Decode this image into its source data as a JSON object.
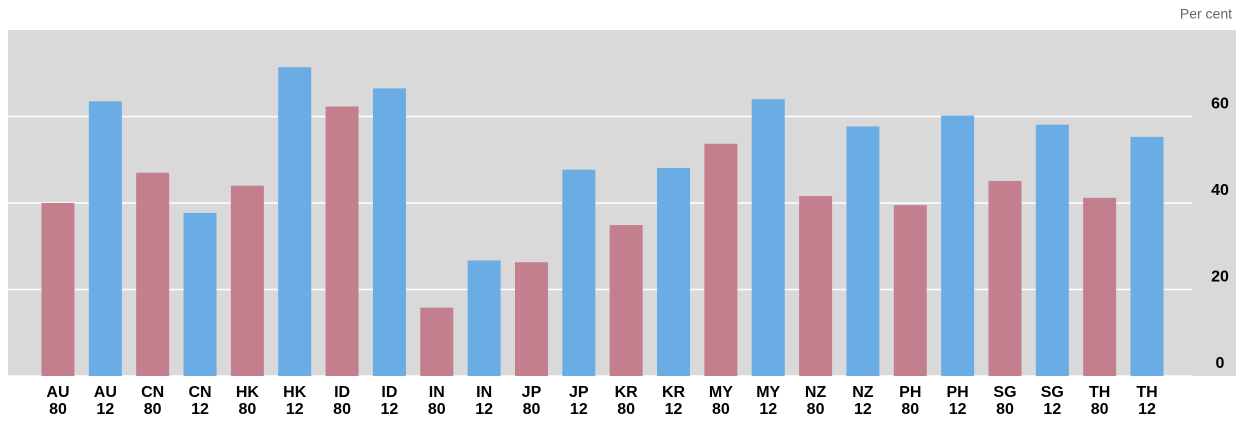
{
  "chart_data": {
    "type": "bar",
    "y_axis_label": "Per cent",
    "categories": [
      [
        "AU",
        "80"
      ],
      [
        "AU",
        "12"
      ],
      [
        "CN",
        "80"
      ],
      [
        "CN",
        "12"
      ],
      [
        "HK",
        "80"
      ],
      [
        "HK",
        "12"
      ],
      [
        "ID",
        "80"
      ],
      [
        "ID",
        "12"
      ],
      [
        "IN",
        "80"
      ],
      [
        "IN",
        "12"
      ],
      [
        "JP",
        "80"
      ],
      [
        "JP",
        "12"
      ],
      [
        "KR",
        "80"
      ],
      [
        "KR",
        "12"
      ],
      [
        "MY",
        "80"
      ],
      [
        "MY",
        "12"
      ],
      [
        "NZ",
        "80"
      ],
      [
        "NZ",
        "12"
      ],
      [
        "PH",
        "80"
      ],
      [
        "PH",
        "12"
      ],
      [
        "SG",
        "80"
      ],
      [
        "SG",
        "12"
      ],
      [
        "TH",
        "80"
      ],
      [
        "TH",
        "12"
      ]
    ],
    "values": [
      40,
      63.5,
      47,
      37.7,
      44,
      71.4,
      62.3,
      66.5,
      15.8,
      26.7,
      26.3,
      47.7,
      34.9,
      48.1,
      53.7,
      64,
      41.6,
      57.7,
      39.5,
      60.2,
      45.1,
      58.1,
      41.2,
      55.3
    ],
    "colors": [
      "#c47f8e",
      "#6aade4",
      "#c47f8e",
      "#6aade4",
      "#c47f8e",
      "#6aade4",
      "#c47f8e",
      "#6aade4",
      "#c47f8e",
      "#6aade4",
      "#c47f8e",
      "#6aade4",
      "#c47f8e",
      "#6aade4",
      "#c47f8e",
      "#6aade4",
      "#c47f8e",
      "#6aade4",
      "#c47f8e",
      "#6aade4",
      "#c47f8e",
      "#6aade4",
      "#c47f8e",
      "#6aade4"
    ],
    "ylim": [
      0,
      80
    ],
    "yticks": [
      0,
      20,
      40,
      60
    ],
    "grid": true
  }
}
